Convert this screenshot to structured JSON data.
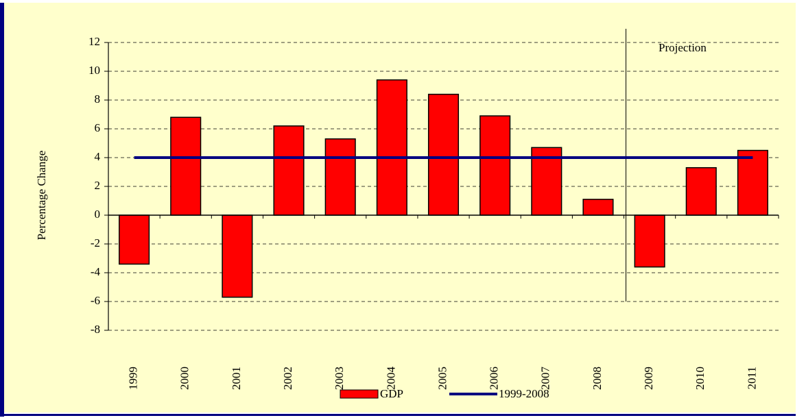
{
  "chart_data": {
    "type": "bar",
    "y_label": "Percentage Change",
    "annotation": "Projection",
    "categories": [
      "1999",
      "2000",
      "2001",
      "2002",
      "2003",
      "2004",
      "2005",
      "2006",
      "2007",
      "2008",
      "2009",
      "2010",
      "2011"
    ],
    "series": [
      {
        "name": "GDP",
        "type": "bar",
        "color": "#ff0000",
        "values": [
          -3.4,
          6.8,
          -5.7,
          6.2,
          5.3,
          9.4,
          8.4,
          6.9,
          4.7,
          1.1,
          -3.6,
          3.3,
          4.5
        ]
      },
      {
        "name": "1999-2008",
        "type": "line",
        "color": "#000080",
        "values": [
          4,
          4,
          4,
          4,
          4,
          4,
          4,
          4,
          4,
          4,
          4,
          4,
          4
        ]
      }
    ],
    "ylim": [
      -8,
      12
    ],
    "yticks": [
      -8,
      -6,
      -4,
      -2,
      0,
      2,
      4,
      6,
      8,
      10,
      12
    ],
    "grid": true,
    "legend": "bottom"
  }
}
